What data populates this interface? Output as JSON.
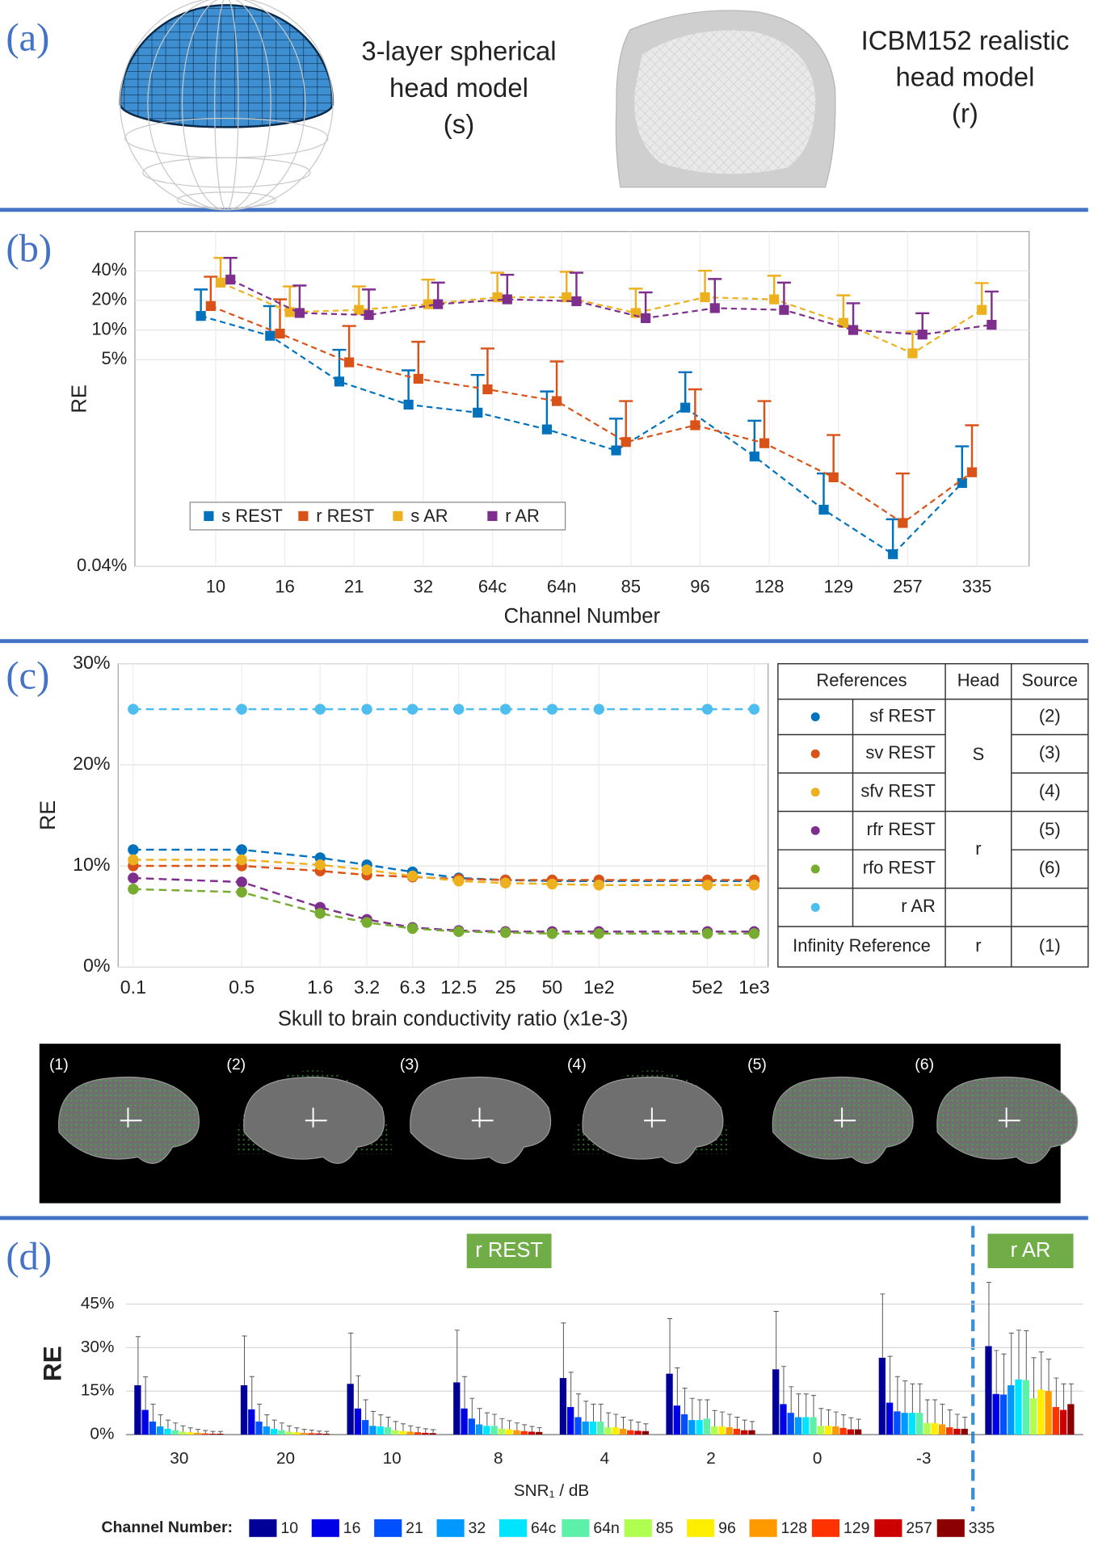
{
  "panel_labels": [
    "(a)",
    "(b)",
    "(c)",
    "(d)"
  ],
  "panel_a": {
    "s_model": [
      "3-layer spherical",
      "head model",
      "(s)"
    ],
    "r_model": [
      "ICBM152 realistic",
      "head model",
      "(r)"
    ]
  },
  "chart_data": [
    {
      "type": "line",
      "y_label": "RE",
      "x_label": "Channel Number",
      "categories": [
        "10",
        "16",
        "21",
        "32",
        "64c",
        "64n",
        "85",
        "96",
        "128",
        "129",
        "257",
        "335"
      ],
      "log_y": true,
      "ylim": [
        0.04,
        100
      ],
      "yticks": [
        {
          "value": 0.04,
          "label": "0.04%"
        },
        {
          "value": 5,
          "label": "5%"
        },
        {
          "value": 10,
          "label": "10%"
        },
        {
          "value": 20,
          "label": "20%"
        },
        {
          "value": 40,
          "label": "40%"
        }
      ],
      "grid": true,
      "legend": "lower left",
      "series": [
        {
          "name": "s REST",
          "color": "#0072bd",
          "values": [
            13.9,
            8.75,
            3.0,
            1.75,
            1.45,
            0.98,
            0.6,
            1.63,
            0.52,
            0.15,
            0.053,
            0.28
          ],
          "errors": [
            11.9,
            8.75,
            3.3,
            2.15,
            2.05,
            1.4,
            0.66,
            2.1,
            0.68,
            0.2,
            0.067,
            0.38
          ]
        },
        {
          "name": "r REST",
          "color": "#d95319",
          "values": [
            17.5,
            9.2,
            4.7,
            3.2,
            2.5,
            1.9,
            0.73,
            1.08,
            0.71,
            0.32,
            0.11,
            0.36
          ],
          "errors": [
            17.3,
            11.3,
            6.3,
            4.4,
            4.0,
            2.9,
            1.17,
            1.42,
            1.19,
            0.54,
            0.24,
            0.72
          ]
        },
        {
          "name": "s AR",
          "color": "#edb120",
          "values": [
            30.3,
            15.2,
            16,
            18.3,
            21.5,
            21.5,
            14.9,
            21.5,
            20.5,
            11.8,
            5.8,
            16
          ],
          "errors": [
            23.7,
            12.5,
            11.7,
            14.2,
            16.7,
            17.5,
            11.4,
            18.5,
            15.1,
            10.7,
            3.8,
            14
          ]
        },
        {
          "name": "r AR",
          "color": "#7e2f8e",
          "values": [
            32.5,
            14.9,
            14.2,
            18.3,
            20.5,
            19.6,
            13.2,
            16.7,
            16,
            10,
            9,
            11.3
          ],
          "errors": [
            21.5,
            13.4,
            11.6,
            12,
            15.9,
            18.6,
            10.9,
            16.3,
            14.3,
            8.7,
            5.8,
            13.3
          ]
        }
      ]
    },
    {
      "type": "line",
      "y_label": "RE",
      "x_label": "Skull to brain conductivity ratio (x1e-3)",
      "log_x": true,
      "x": [
        0.1,
        0.5,
        1.6,
        3.2,
        6.3,
        12.5,
        25,
        50,
        100,
        500,
        1000
      ],
      "xlim": [
        0.08,
        1230
      ],
      "xticks": [
        0.1,
        0.5,
        1.6,
        3.2,
        6.3,
        12.5,
        25,
        50,
        {
          "value": 100,
          "label": "1e2"
        },
        {
          "value": 500,
          "label": "5e2"
        },
        {
          "value": 1000,
          "label": "1e3"
        }
      ],
      "ylim": [
        0,
        30
      ],
      "yticks": [
        {
          "value": 0,
          "label": "0%"
        },
        {
          "value": 10,
          "label": "10%"
        },
        {
          "value": 20,
          "label": "20%"
        },
        {
          "value": 30,
          "label": "30%"
        }
      ],
      "grid": true,
      "series": [
        {
          "name": "sf REST",
          "color": "#0072bd",
          "values": [
            11.6,
            11.6,
            10.8,
            10.1,
            9.4,
            8.8,
            8.6,
            8.5,
            8.5,
            8.5,
            8.5
          ]
        },
        {
          "name": "sv REST",
          "color": "#d95319",
          "values": [
            10.0,
            10.0,
            9.5,
            9.1,
            8.9,
            8.7,
            8.6,
            8.6,
            8.6,
            8.6,
            8.6
          ]
        },
        {
          "name": "sfv REST",
          "color": "#edb120",
          "values": [
            10.6,
            10.6,
            10.1,
            9.6,
            9.0,
            8.5,
            8.3,
            8.2,
            8.1,
            8.1,
            8.1
          ]
        },
        {
          "name": "rfr REST",
          "color": "#7e2f8e",
          "values": [
            8.8,
            8.4,
            5.9,
            4.7,
            3.9,
            3.6,
            3.5,
            3.5,
            3.5,
            3.5,
            3.5
          ]
        },
        {
          "name": "rfo REST",
          "color": "#77ac30",
          "values": [
            7.7,
            7.4,
            5.3,
            4.4,
            3.8,
            3.5,
            3.4,
            3.3,
            3.3,
            3.3,
            3.3
          ]
        },
        {
          "name": "r AR",
          "color": "#4dbeee",
          "values": [
            25.5,
            25.5,
            25.5,
            25.5,
            25.5,
            25.5,
            25.5,
            25.5,
            25.5,
            25.5,
            25.5
          ]
        }
      ]
    },
    {
      "type": "bar",
      "y_label": "RE",
      "x_label": "SNR₁ / dB",
      "categories": [
        "30",
        "20",
        "10",
        "8",
        "4",
        "2",
        "0",
        "-3",
        null
      ],
      "ylim": [
        0,
        55
      ],
      "yticks": [
        {
          "value": 0,
          "label": "0%"
        },
        {
          "value": 15,
          "label": "15%"
        },
        {
          "value": 30,
          "label": "30%"
        },
        {
          "value": 45,
          "label": "45%"
        }
      ],
      "grid": true,
      "legend_title": "Channel Number:",
      "annotations": [
        "r REST",
        "r AR"
      ],
      "series": [
        {
          "name": "10",
          "color": "#000099",
          "values": [
            17,
            17,
            17.5,
            18,
            19.5,
            21,
            22.5,
            26.5,
            30.5
          ],
          "errors": [
            16.8,
            17,
            17.5,
            18,
            19,
            19,
            20,
            22,
            22
          ]
        },
        {
          "name": "16",
          "color": "#0000e6",
          "values": [
            8.5,
            8.7,
            9,
            9,
            9.5,
            10,
            10.5,
            11,
            14
          ],
          "errors": [
            11.4,
            11.3,
            11.3,
            11,
            12,
            13,
            13,
            16,
            15
          ]
        },
        {
          "name": "21",
          "color": "#0050ff",
          "values": [
            4.5,
            4.5,
            5,
            5.5,
            6,
            7,
            7.5,
            8,
            13.8
          ],
          "errors": [
            6,
            6,
            7,
            7,
            8,
            9,
            9,
            12,
            14
          ]
        },
        {
          "name": "32",
          "color": "#0099ff",
          "values": [
            2.8,
            2.8,
            3,
            3.5,
            4.5,
            5,
            6,
            7.5,
            17
          ],
          "errors": [
            4,
            4,
            5,
            5.5,
            7,
            7.5,
            8,
            11,
            18
          ]
        },
        {
          "name": "64c",
          "color": "#00e5ff",
          "values": [
            2,
            2,
            2.8,
            3,
            4.5,
            5,
            6,
            7.5,
            19
          ],
          "errors": [
            3,
            3,
            4,
            4.5,
            6,
            7,
            8,
            10,
            17
          ]
        },
        {
          "name": "64n",
          "color": "#5cf0a8",
          "values": [
            1.5,
            1.5,
            2.5,
            3,
            4.5,
            5.5,
            6,
            7.5,
            18.8
          ],
          "errors": [
            2.5,
            2.5,
            3.5,
            4,
            6,
            6.5,
            7.5,
            10,
            17
          ]
        },
        {
          "name": "85",
          "color": "#b0ff50",
          "values": [
            1,
            1,
            1.5,
            2,
            2.5,
            2.8,
            3,
            4,
            12.5
          ],
          "errors": [
            2,
            2,
            3,
            3.5,
            5,
            5.5,
            6,
            8,
            14
          ]
        },
        {
          "name": "96",
          "color": "#ffee00",
          "values": [
            0.8,
            0.8,
            1.2,
            1.8,
            2.5,
            2.8,
            3,
            4,
            15.5
          ],
          "errors": [
            1.5,
            1.5,
            2.5,
            3,
            4.5,
            5,
            5.5,
            8,
            13
          ]
        },
        {
          "name": "128",
          "color": "#ff9900",
          "values": [
            0.6,
            0.6,
            1,
            1.5,
            2,
            2.5,
            2.8,
            3.5,
            15
          ],
          "errors": [
            1.2,
            1.2,
            2,
            2.5,
            4,
            4.5,
            5,
            7,
            11
          ]
        },
        {
          "name": "129",
          "color": "#ff3300",
          "values": [
            0.4,
            0.5,
            0.8,
            1.2,
            1.5,
            2,
            2.3,
            2.5,
            9.5
          ],
          "errors": [
            1,
            1,
            1.7,
            2.2,
            3.5,
            4,
            4.5,
            6,
            10
          ]
        },
        {
          "name": "257",
          "color": "#cc0000",
          "values": [
            0.3,
            0.4,
            0.6,
            1,
            1.3,
            1.5,
            1.8,
            2,
            8.5
          ],
          "errors": [
            0.8,
            0.8,
            1.4,
            1.8,
            3,
            3.5,
            4,
            5,
            9
          ]
        },
        {
          "name": "335",
          "color": "#8b0000",
          "values": [
            0.3,
            0.3,
            0.5,
            0.9,
            1.2,
            1.5,
            1.8,
            2,
            10.5
          ],
          "errors": [
            0.8,
            0.8,
            1.2,
            1.5,
            2.5,
            3,
            3.5,
            4,
            7
          ]
        }
      ]
    }
  ],
  "table": {
    "header": [
      "References",
      "Head",
      "Source"
    ],
    "heads": [
      "S",
      "r"
    ],
    "sources": [
      "(2)",
      "(3)",
      "(4)",
      "(5)",
      "(6)"
    ],
    "infinity": [
      "Infinity Reference",
      "r",
      "(1)"
    ]
  },
  "image_labels": [
    "(1)",
    "(2)",
    "(3)",
    "(4)",
    "(5)",
    "(6)"
  ]
}
